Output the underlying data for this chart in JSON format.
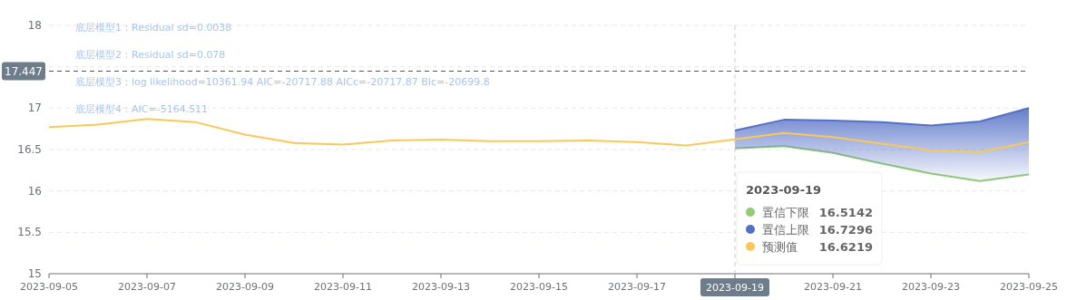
{
  "chart_data": {
    "type": "line",
    "annotations": [
      "底层模型1：Residual sd=0.0038",
      "底层模型2：Residual sd=0.078",
      "底层模型3：log likelihood=10361.94 AIC=-20717.88 AICc=-20717.87 BIc=-20699.8",
      "底层模型4：AIC=-5164.511",
      "16.5142",
      "16.7296",
      "16.6219"
    ],
    "legend_title": "2023-09-19",
    "series": [
      {
        "name": "置信下限",
        "color": "#91cc75",
        "x": [
          "2023-09-19",
          "2023-09-20",
          "2023-09-21",
          "2023-09-22",
          "2023-09-23",
          "2023-09-24",
          "2023-09-25"
        ],
        "values": [
          16.5142,
          16.54,
          16.46,
          16.33,
          16.21,
          16.12,
          16.2
        ]
      },
      {
        "name": "置信上限",
        "color": "#5470c6",
        "type": "area",
        "x": [
          "2023-09-19",
          "2023-09-20",
          "2023-09-21",
          "2023-09-22",
          "2023-09-23",
          "2023-09-24",
          "2023-09-25"
        ],
        "values": [
          16.7296,
          16.86,
          16.85,
          16.83,
          16.79,
          16.84,
          17.0
        ]
      },
      {
        "name": "预测值",
        "color": "#fac858",
        "x": [
          "2023-09-05",
          "2023-09-06",
          "2023-09-07",
          "2023-09-08",
          "2023-09-09",
          "2023-09-10",
          "2023-09-11",
          "2023-09-12",
          "2023-09-13",
          "2023-09-14",
          "2023-09-15",
          "2023-09-16",
          "2023-09-17",
          "2023-09-18",
          "2023-09-19",
          "2023-09-20",
          "2023-09-21",
          "2023-09-22",
          "2023-09-23",
          "2023-09-24",
          "2023-09-25"
        ],
        "values": [
          16.77,
          16.8,
          16.87,
          16.83,
          16.68,
          16.58,
          16.56,
          16.61,
          16.62,
          16.6,
          16.6,
          16.61,
          16.59,
          16.55,
          16.6219,
          16.7,
          16.65,
          16.57,
          16.49,
          16.47,
          16.59
        ]
      }
    ],
    "xlim": [
      "2023-09-05",
      "2023-09-25"
    ],
    "xticks": [
      "2023-09-05",
      "2023-09-07",
      "2023-09-09",
      "2023-09-11",
      "2023-09-13",
      "2023-09-15",
      "2023-09-17",
      {
        "value": "2023-09-19",
        "label": null
      },
      "2023-09-21",
      "2023-09-23",
      "2023-09-25"
    ],
    "ylim": [
      15,
      18
    ],
    "yticks": [
      15,
      15.5,
      16,
      16.5,
      17,
      {
        "value": 17.5,
        "label": null
      },
      18
    ],
    "grid": "y",
    "legend": "bottom right",
    "ref_lines": [
      {
        "axis": "y",
        "value": 17.447,
        "label": "17.447",
        "line_style": "dashed",
        "color": "#555555"
      },
      {
        "axis": "x",
        "value": "2023-09-19",
        "label": "2023-09-19",
        "line_style": "dashed",
        "color": "#cccccc"
      }
    ]
  }
}
